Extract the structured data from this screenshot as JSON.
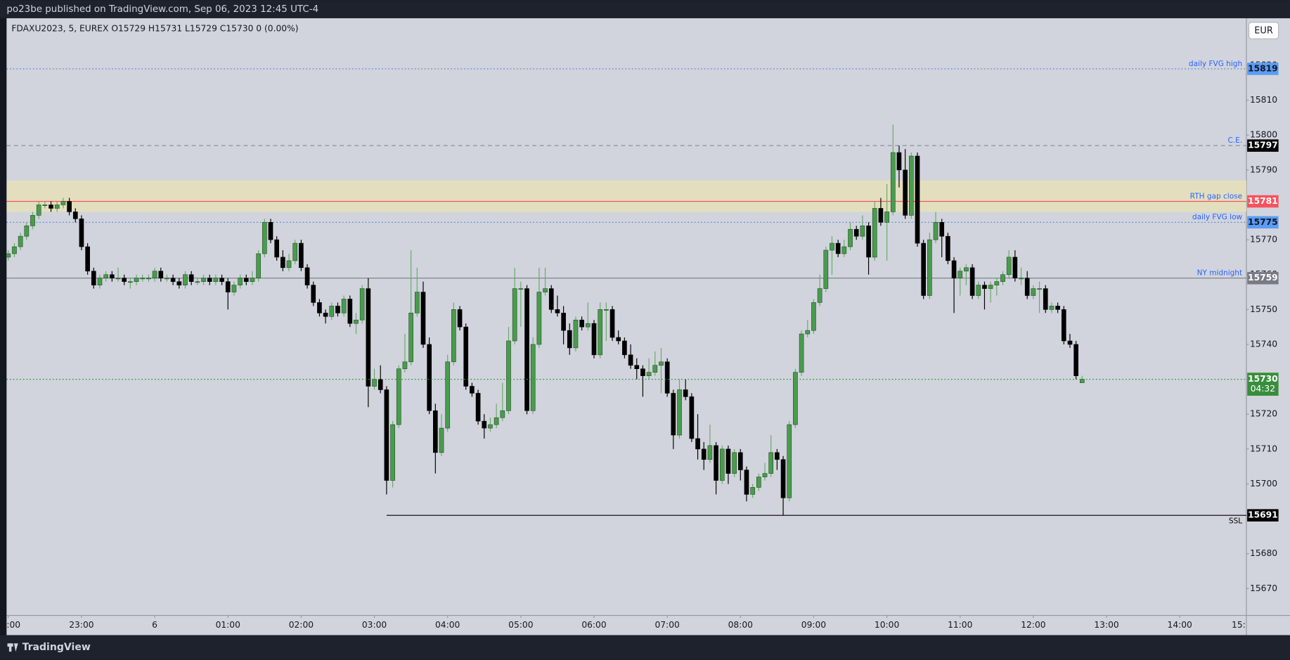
{
  "header": {
    "text": "po23be published on TradingView.com, Sep 06, 2023 12:45 UTC-4"
  },
  "footer": {
    "brand": "TradingView"
  },
  "chart_data": {
    "type": "candlestick",
    "legend": "FDAXU2023, 5, EUREX  O15729  H15731  L15729  C15730  0 (0.00%)",
    "currency": "EUR",
    "countdown": "04:32",
    "up_color": "#4a9b4e",
    "down_color": "#000000",
    "up_wick": "#6aa86c",
    "down_wick": "#000000",
    "last_color": "#388e3c",
    "ylim": [
      15662.3,
      15833.5
    ],
    "yticks": [
      15670,
      15680,
      15690,
      15700,
      15710,
      15720,
      15730,
      15740,
      15750,
      15760,
      15770,
      15780,
      15790,
      15800,
      15810,
      15820
    ],
    "xlim": [
      1318.6,
      2334.6
    ],
    "xticks": [
      {
        "value": 1320,
        "label": ":00"
      },
      {
        "value": 1380,
        "label": "23:00"
      },
      {
        "value": 1440,
        "label": "6"
      },
      {
        "value": 1500,
        "label": "01:00"
      },
      {
        "value": 1560,
        "label": "02:00"
      },
      {
        "value": 1620,
        "label": "03:00"
      },
      {
        "value": 1680,
        "label": "04:00"
      },
      {
        "value": 1740,
        "label": "05:00"
      },
      {
        "value": 1800,
        "label": "06:00"
      },
      {
        "value": 1860,
        "label": "07:00"
      },
      {
        "value": 1920,
        "label": "08:00"
      },
      {
        "value": 1980,
        "label": "09:00"
      },
      {
        "value": 2040,
        "label": "10:00"
      },
      {
        "value": 2100,
        "label": "11:00"
      },
      {
        "value": 2160,
        "label": "12:00"
      },
      {
        "value": 2220,
        "label": "13:00"
      },
      {
        "value": 2280,
        "label": "14:00"
      },
      {
        "value": 2340,
        "label": "15:"
      }
    ],
    "zone": {
      "low": 15778,
      "high": 15787,
      "color": "#e6e0b8"
    },
    "levels": [
      {
        "label": "daily FVG high",
        "value": 15819,
        "color": "#4a7fd1",
        "style": "dotted",
        "badge": "#5b9cf6",
        "text_color": "#2962ff"
      },
      {
        "label": "C.E.",
        "value": 15797,
        "color": "#8a8e99",
        "style": "dashed",
        "badge": "#000000",
        "text_color": "#2962ff"
      },
      {
        "label": "RTH gap close",
        "value": 15781,
        "color": "#f7525f",
        "style": "solid",
        "badge": "#f7525f",
        "text_color": "#2962ff"
      },
      {
        "label": "daily FVG low",
        "value": 15775,
        "color": "#4a7fd1",
        "style": "dotted",
        "badge": "#5b9cf6",
        "text_color": "#2962ff"
      },
      {
        "label": "NY midnight",
        "value": 15759,
        "color": "#787b86",
        "style": "solid",
        "badge": "#787b86",
        "text_color": "#2962ff"
      },
      {
        "label": "SSL",
        "value": 15691,
        "color": "#000000",
        "style": "solid",
        "badge": "#000000",
        "text_color": "#000000",
        "start": 1630
      }
    ],
    "x": [
      1320,
      1325,
      1330,
      1335,
      1340,
      1345,
      1350,
      1355,
      1360,
      1365,
      1370,
      1375,
      1380,
      1385,
      1390,
      1395,
      1400,
      1405,
      1410,
      1415,
      1420,
      1425,
      1430,
      1435,
      1440,
      1445,
      1450,
      1455,
      1460,
      1465,
      1470,
      1475,
      1480,
      1485,
      1490,
      1495,
      1500,
      1505,
      1510,
      1515,
      1520,
      1525,
      1530,
      1535,
      1540,
      1545,
      1550,
      1555,
      1560,
      1565,
      1570,
      1575,
      1580,
      1585,
      1590,
      1595,
      1600,
      1605,
      1610,
      1615,
      1620,
      1625,
      1630,
      1635,
      1640,
      1645,
      1650,
      1655,
      1660,
      1665,
      1670,
      1675,
      1680,
      1685,
      1690,
      1695,
      1700,
      1705,
      1710,
      1715,
      1720,
      1725,
      1730,
      1735,
      1740,
      1745,
      1750,
      1755,
      1760,
      1765,
      1770,
      1775,
      1780,
      1785,
      1790,
      1795,
      1800,
      1805,
      1810,
      1815,
      1820,
      1825,
      1830,
      1835,
      1840,
      1845,
      1850,
      1855,
      1860,
      1865,
      1870,
      1875,
      1880,
      1885,
      1890,
      1895,
      1900,
      1905,
      1910,
      1915,
      1920,
      1925,
      1930,
      1935,
      1940,
      1945,
      1950,
      1955,
      1960,
      1965,
      1970,
      1975,
      1980,
      1985,
      1990,
      1995,
      2000,
      2005,
      2010,
      2015,
      2020,
      2025,
      2030,
      2035,
      2040,
      2045,
      2050,
      2055,
      2060,
      2065,
      2070,
      2075,
      2080,
      2085,
      2090,
      2095,
      2100,
      2105,
      2110,
      2115,
      2120,
      2125,
      2130,
      2135,
      2140,
      2145,
      2150,
      2155,
      2160,
      2165,
      2170,
      2175,
      2180,
      2185,
      2190,
      2195,
      2200
    ],
    "ohlc": [
      [
        15765,
        15767,
        15764,
        15766
      ],
      [
        15766,
        15769,
        15765,
        15768
      ],
      [
        15768,
        15772,
        15767,
        15771
      ],
      [
        15771,
        15775,
        15770,
        15774
      ],
      [
        15774,
        15778,
        15773,
        15777
      ],
      [
        15777,
        15781,
        15776,
        15780
      ],
      [
        15780,
        15781,
        15779,
        15780
      ],
      [
        15780,
        15781,
        15778,
        15779
      ],
      [
        15779,
        15781,
        15778,
        15780
      ],
      [
        15780,
        15782,
        15779,
        15781
      ],
      [
        15781,
        15782,
        15777,
        15778
      ],
      [
        15778,
        15779,
        15775,
        15776
      ],
      [
        15776,
        15777,
        15767,
        15768
      ],
      [
        15768,
        15769,
        15760,
        15761
      ],
      [
        15761,
        15762,
        15756,
        15757
      ],
      [
        15757,
        15760,
        15756,
        15759
      ],
      [
        15759,
        15761,
        15758,
        15760
      ],
      [
        15760,
        15761,
        15758,
        15759
      ],
      [
        15759,
        15762,
        15758,
        15759
      ],
      [
        15759,
        15760,
        15757,
        15758
      ],
      [
        15758,
        15759,
        15756,
        15758
      ],
      [
        15758,
        15760,
        15757,
        15759
      ],
      [
        15759,
        15760,
        15758,
        15759
      ],
      [
        15759,
        15760,
        15758,
        15759
      ],
      [
        15759,
        15762,
        15758,
        15761
      ],
      [
        15761,
        15762,
        15758,
        15759
      ],
      [
        15759,
        15760,
        15758,
        15759
      ],
      [
        15759,
        15760,
        15757,
        15758
      ],
      [
        15758,
        15759,
        15756,
        15757
      ],
      [
        15757,
        15761,
        15756,
        15760
      ],
      [
        15760,
        15761,
        15757,
        15758
      ],
      [
        15758,
        15759,
        15757,
        15758
      ],
      [
        15758,
        15760,
        15757,
        15759
      ],
      [
        15759,
        15760,
        15757,
        15758
      ],
      [
        15758,
        15760,
        15757,
        15759
      ],
      [
        15759,
        15760,
        15757,
        15758
      ],
      [
        15758,
        15759,
        15750,
        15755
      ],
      [
        15755,
        15758,
        15754,
        15757
      ],
      [
        15757,
        15760,
        15756,
        15759
      ],
      [
        15759,
        15760,
        15757,
        15758
      ],
      [
        15758,
        15761,
        15757,
        15759
      ],
      [
        15759,
        15767,
        15758,
        15766
      ],
      [
        15766,
        15776,
        15765,
        15775
      ],
      [
        15775,
        15776,
        15769,
        15770
      ],
      [
        15770,
        15771,
        15764,
        15765
      ],
      [
        15765,
        15767,
        15761,
        15762
      ],
      [
        15762,
        15766,
        15761,
        15764
      ],
      [
        15764,
        15770,
        15763,
        15769
      ],
      [
        15769,
        15770,
        15761,
        15762
      ],
      [
        15762,
        15763,
        15756,
        15757
      ],
      [
        15757,
        15758,
        15751,
        15752
      ],
      [
        15752,
        15753,
        15748,
        15749
      ],
      [
        15749,
        15750,
        15746,
        15748
      ],
      [
        15748,
        15752,
        15747,
        15751
      ],
      [
        15751,
        15752,
        15748,
        15749
      ],
      [
        15749,
        15754,
        15748,
        15753
      ],
      [
        15753,
        15754,
        15745,
        15746
      ],
      [
        15746,
        15749,
        15743,
        15747
      ],
      [
        15747,
        15757,
        15746,
        15756
      ],
      [
        15756,
        15759,
        15722,
        15728
      ],
      [
        15728,
        15733,
        15727,
        15730
      ],
      [
        15730,
        15734,
        15726,
        15727
      ],
      [
        15727,
        15728,
        15697,
        15701
      ],
      [
        15701,
        15718,
        15699,
        15717
      ],
      [
        15717,
        15734,
        15716,
        15733
      ],
      [
        15733,
        15743,
        15732,
        15735
      ],
      [
        15735,
        15767,
        15734,
        15749
      ],
      [
        15749,
        15762,
        15748,
        15755
      ],
      [
        15755,
        15758,
        15739,
        15740
      ],
      [
        15740,
        15742,
        15720,
        15721
      ],
      [
        15721,
        15723,
        15703,
        15709
      ],
      [
        15709,
        15720,
        15708,
        15716
      ],
      [
        15716,
        15737,
        15715,
        15735
      ],
      [
        15735,
        15752,
        15734,
        15750
      ],
      [
        15750,
        15751,
        15744,
        15745
      ],
      [
        15745,
        15746,
        15727,
        15728
      ],
      [
        15728,
        15729,
        15725,
        15726
      ],
      [
        15726,
        15727,
        15717,
        15718
      ],
      [
        15718,
        15720,
        15713,
        15716
      ],
      [
        15716,
        15719,
        15715,
        15717
      ],
      [
        15717,
        15723,
        15716,
        15719
      ],
      [
        15719,
        15729,
        15718,
        15721
      ],
      [
        15721,
        15745,
        15720,
        15741
      ],
      [
        15741,
        15762,
        15740,
        15756
      ],
      [
        15756,
        15758,
        15745,
        15756
      ],
      [
        15756,
        15757,
        15720,
        15721
      ],
      [
        15721,
        15742,
        15720,
        15740
      ],
      [
        15740,
        15762,
        15739,
        15755
      ],
      [
        15755,
        15762,
        15754,
        15756
      ],
      [
        15756,
        15757,
        15749,
        15750
      ],
      [
        15750,
        15754,
        15748,
        15749
      ],
      [
        15749,
        15751,
        15740,
        15744
      ],
      [
        15744,
        15746,
        15737,
        15739
      ],
      [
        15739,
        15748,
        15738,
        15747
      ],
      [
        15747,
        15748,
        15744,
        15745
      ],
      [
        15745,
        15752,
        15744,
        15746
      ],
      [
        15746,
        15747,
        15736,
        15737
      ],
      [
        15737,
        15752,
        15736,
        15750
      ],
      [
        15750,
        15752,
        15741,
        15750
      ],
      [
        15750,
        15751,
        15741,
        15742
      ],
      [
        15742,
        15744,
        15740,
        15741
      ],
      [
        15741,
        15742,
        15736,
        15737
      ],
      [
        15737,
        15740,
        15733,
        15734
      ],
      [
        15734,
        15736,
        15730,
        15733
      ],
      [
        15733,
        15734,
        15725,
        15731
      ],
      [
        15731,
        15736,
        15730,
        15732
      ],
      [
        15732,
        15738,
        15731,
        15734
      ],
      [
        15734,
        15739,
        15726,
        15735
      ],
      [
        15735,
        15736,
        15725,
        15726
      ],
      [
        15726,
        15727,
        15710,
        15714
      ],
      [
        15714,
        15730,
        15713,
        15727
      ],
      [
        15727,
        15730,
        15724,
        15725
      ],
      [
        15725,
        15726,
        15712,
        15713
      ],
      [
        15713,
        15720,
        15707,
        15710
      ],
      [
        15710,
        15712,
        15704,
        15707
      ],
      [
        15707,
        15717,
        15706,
        15711
      ],
      [
        15711,
        15712,
        15697,
        15701
      ],
      [
        15701,
        15711,
        15700,
        15710
      ],
      [
        15710,
        15711,
        15700,
        15703
      ],
      [
        15703,
        15710,
        15702,
        15709
      ],
      [
        15709,
        15710,
        15701,
        15704
      ],
      [
        15704,
        15705,
        15695,
        15697
      ],
      [
        15697,
        15700,
        15696,
        15699
      ],
      [
        15699,
        15703,
        15698,
        15702
      ],
      [
        15702,
        15706,
        15701,
        15703
      ],
      [
        15703,
        15714,
        15702,
        15709
      ],
      [
        15709,
        15710,
        15704,
        15707
      ],
      [
        15707,
        15708,
        15691,
        15696
      ],
      [
        15696,
        15718,
        15695,
        15717
      ],
      [
        15717,
        15733,
        15716,
        15732
      ],
      [
        15732,
        15744,
        15731,
        15743
      ],
      [
        15743,
        15747,
        15742,
        15744
      ],
      [
        15744,
        15753,
        15743,
        15752
      ],
      [
        15752,
        15760,
        15751,
        15756
      ],
      [
        15756,
        15768,
        15755,
        15767
      ],
      [
        15767,
        15771,
        15760,
        15769
      ],
      [
        15769,
        15770,
        15765,
        15766
      ],
      [
        15766,
        15770,
        15765,
        15768
      ],
      [
        15768,
        15775,
        15767,
        15773
      ],
      [
        15773,
        15774,
        15770,
        15771
      ],
      [
        15771,
        15777,
        15770,
        15774
      ],
      [
        15774,
        15775,
        15760,
        15765
      ],
      [
        15765,
        15781,
        15764,
        15779
      ],
      [
        15779,
        15782,
        15774,
        15775
      ],
      [
        15775,
        15786,
        15764,
        15778
      ],
      [
        15778,
        15803,
        15777,
        15795
      ],
      [
        15795,
        15797,
        15785,
        15790
      ],
      [
        15790,
        15796,
        15776,
        15777
      ],
      [
        15777,
        15795,
        15776,
        15794
      ],
      [
        15794,
        15795,
        15768,
        15769
      ],
      [
        15769,
        15770,
        15753,
        15754
      ],
      [
        15754,
        15772,
        15753,
        15770
      ],
      [
        15770,
        15778,
        15769,
        15775
      ],
      [
        15775,
        15776,
        15765,
        15771
      ],
      [
        15771,
        15772,
        15763,
        15764
      ],
      [
        15764,
        15765,
        15749,
        15759
      ],
      [
        15759,
        15762,
        15754,
        15761
      ],
      [
        15761,
        15763,
        15757,
        15762
      ],
      [
        15762,
        15763,
        15753,
        15754
      ],
      [
        15754,
        15758,
        15753,
        15757
      ],
      [
        15757,
        15758,
        15750,
        15756
      ],
      [
        15756,
        15758,
        15752,
        15757
      ],
      [
        15757,
        15759,
        15754,
        15758
      ],
      [
        15758,
        15761,
        15757,
        15760
      ],
      [
        15760,
        15767,
        15759,
        15765
      ],
      [
        15765,
        15767,
        15758,
        15759
      ],
      [
        15759,
        15762,
        15757,
        15759
      ],
      [
        15759,
        15761,
        15753,
        15754
      ],
      [
        15754,
        15757,
        15753,
        15756
      ],
      [
        15756,
        15758,
        15749,
        15756
      ],
      [
        15756,
        15757,
        15749,
        15750
      ],
      [
        15750,
        15752,
        15749,
        15751
      ],
      [
        15751,
        15752,
        15749,
        15750
      ],
      [
        15750,
        15751,
        15740,
        15741
      ],
      [
        15741,
        15743,
        15739,
        15740
      ],
      [
        15740,
        15741,
        15730,
        15731
      ],
      [
        15729,
        15731,
        15729,
        15730
      ]
    ]
  }
}
